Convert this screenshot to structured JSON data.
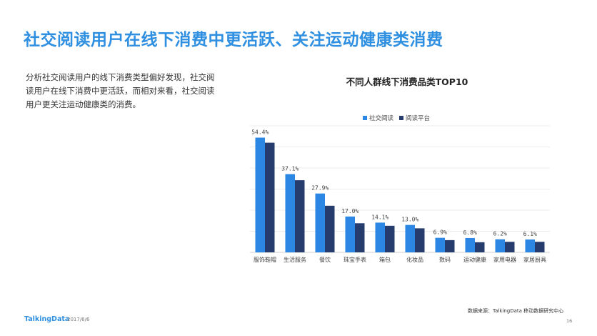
{
  "header": {
    "title": "社交阅读用户在线下消费中更活跃、关注运动健康类消费"
  },
  "description": "分析社交阅读用户的线下消费类型偏好发现，社交阅读用户在线下消费中更活跃，而相对来看，社交阅读用户更关注运动健康类的消费。",
  "chart_data": {
    "type": "bar",
    "title": "不同人群线下消费品类TOP10",
    "categories": [
      "服饰鞋帽",
      "生活服务",
      "餐饮",
      "珠宝手表",
      "箱包",
      "化妆品",
      "数码",
      "运动健康",
      "家用电器",
      "家居厨具"
    ],
    "series": [
      {
        "name": "社交阅读",
        "values": [
          54.4,
          37.1,
          27.9,
          17.0,
          14.1,
          13.0,
          6.9,
          6.8,
          6.2,
          6.1
        ],
        "color": "#2b87e3"
      },
      {
        "name": "阅读平台",
        "values": [
          52.0,
          34.2,
          22.1,
          13.8,
          12.6,
          11.4,
          5.8,
          4.8,
          5.0,
          5.0
        ],
        "color": "#253c6c"
      }
    ],
    "data_labels": [
      "54.4%",
      "37.1%",
      "27.9%",
      "17.0%",
      "14.1%",
      "13.0%",
      "6.9%",
      "6.8%",
      "6.2%",
      "6.1%"
    ],
    "ylim": [
      0,
      60
    ],
    "grid": true,
    "legend": "top"
  },
  "footer": {
    "brand": "TalkingData",
    "date": "2017/6/6",
    "source": "数据来源：TalkingData 移动数据研究中心",
    "page": "16"
  }
}
